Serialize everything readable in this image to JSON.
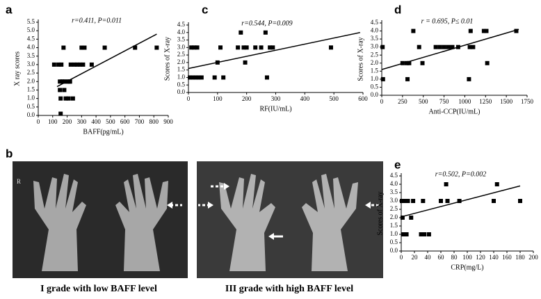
{
  "chart_data": [
    {
      "type": "scatter",
      "panel": "a",
      "annotation": "r=0.411, P=0.011",
      "x_label": "BAFF(pg/mL)",
      "y_label": "X ray scores",
      "color": "#000000",
      "x": [
        110,
        140,
        150,
        150,
        155,
        155,
        160,
        165,
        170,
        175,
        180,
        185,
        190,
        200,
        210,
        215,
        220,
        225,
        240,
        250,
        270,
        290,
        300,
        310,
        320,
        370,
        460,
        670,
        820
      ],
      "y": [
        3,
        3,
        2,
        1.5,
        1,
        0.1,
        3,
        2,
        2,
        4,
        1.5,
        2,
        1,
        2,
        1,
        2,
        2,
        3,
        1,
        3,
        3,
        3,
        4,
        3,
        4,
        3,
        4,
        4,
        4
      ],
      "trendline": {
        "x": [
          130,
          820
        ],
        "y": [
          1.7,
          4.8
        ]
      },
      "xlim": [
        0,
        900
      ],
      "ylim": [
        0,
        5.5
      ],
      "xticks": [
        0,
        100,
        200,
        300,
        400,
        500,
        600,
        700,
        800,
        900
      ],
      "yticks": [
        {
          "value": 0,
          "label": "0.0"
        },
        0.5,
        {
          "value": 1,
          "label": "1.0"
        },
        1.5,
        {
          "value": 2,
          "label": "2.0"
        },
        2.5,
        {
          "value": 3,
          "label": "3.0"
        },
        3.5,
        {
          "value": 4,
          "label": "4.0"
        },
        4.5,
        {
          "value": 5,
          "label": "5.0"
        },
        5.5
      ]
    },
    {
      "type": "scatter",
      "panel": "c",
      "annotation": "r=0.544, P=0.009",
      "x_label": "RF(IU/mL)",
      "y_label": "Scores of X-ray",
      "color": "#000000",
      "x": [
        5,
        10,
        15,
        20,
        25,
        30,
        35,
        45,
        90,
        100,
        110,
        120,
        170,
        180,
        190,
        195,
        200,
        230,
        250,
        265,
        270,
        280,
        290,
        490
      ],
      "y": [
        1,
        3,
        1,
        3,
        1,
        3,
        1,
        1,
        1,
        2,
        3,
        1,
        3,
        4,
        3,
        2,
        3,
        3,
        3,
        4,
        1,
        3,
        3,
        3
      ],
      "trendline": {
        "x": [
          0,
          590
        ],
        "y": [
          1.6,
          4.0
        ]
      },
      "xlim": [
        0,
        600
      ],
      "ylim": [
        0,
        4.5
      ],
      "xticks": [
        0,
        100,
        200,
        300,
        400,
        500,
        600
      ],
      "yticks": [
        {
          "value": 0,
          "label": "0.0"
        },
        0.5,
        {
          "value": 1,
          "label": "1.0"
        },
        1.5,
        {
          "value": 2,
          "label": "2.0"
        },
        2.5,
        {
          "value": 3,
          "label": "3.0"
        },
        3.5,
        {
          "value": 4,
          "label": "4.0"
        },
        4.5
      ]
    },
    {
      "type": "scatter",
      "panel": "d",
      "annotation": "r = 0.695, P≤ 0.01",
      "x_label": "Anti-CCP(IU/mL)",
      "y_label": "Scores of X-ray",
      "color": "#000000",
      "x": [
        10,
        15,
        250,
        300,
        310,
        330,
        380,
        450,
        490,
        650,
        700,
        750,
        800,
        850,
        920,
        1050,
        1060,
        1070,
        1100,
        1230,
        1260,
        1270,
        1620
      ],
      "y": [
        3,
        1,
        2,
        2,
        1,
        2,
        4,
        3,
        2,
        3,
        3,
        3,
        3,
        3,
        3,
        1,
        3,
        4,
        3,
        4,
        4,
        2,
        4
      ],
      "trendline": {
        "x": [
          0,
          1650
        ],
        "y": [
          1.6,
          4.1
        ]
      },
      "xlim": [
        0,
        1750
      ],
      "ylim": [
        0,
        4.5
      ],
      "xticks": [
        0,
        250,
        500,
        750,
        1000,
        1250,
        1500,
        1750
      ],
      "yticks": [
        {
          "value": 0,
          "label": "0.0"
        },
        0.5,
        {
          "value": 1,
          "label": "1.0"
        },
        1.5,
        {
          "value": 2,
          "label": "2.0"
        },
        2.5,
        {
          "value": 3,
          "label": "3.0"
        },
        3.5,
        {
          "value": 4,
          "label": "4.0"
        },
        4.5
      ]
    },
    {
      "type": "scatter",
      "panel": "e",
      "annotation": "r=0.502, P=0.002",
      "x_label": "CRP(mg/L)",
      "y_label": "Scores of X-ray",
      "color": "#000000",
      "x": [
        1,
        2,
        3,
        4,
        5,
        6,
        8,
        10,
        15,
        18,
        30,
        33,
        35,
        42,
        60,
        68,
        70,
        88,
        140,
        145,
        180
      ],
      "y": [
        3,
        2,
        1,
        3,
        1,
        3,
        1,
        3,
        2,
        3,
        1,
        3,
        1,
        1,
        3,
        4,
        3,
        3,
        3,
        4,
        3
      ],
      "trendline": {
        "x": [
          0,
          180
        ],
        "y": [
          2.05,
          3.9
        ]
      },
      "xlim": [
        0,
        200
      ],
      "ylim": [
        0,
        4.5
      ],
      "xticks": [
        0,
        20,
        40,
        60,
        80,
        100,
        120,
        140,
        160,
        180,
        200
      ],
      "yticks": [
        {
          "value": 0,
          "label": "0.0"
        },
        0.5,
        {
          "value": 1,
          "label": "1.0"
        },
        1.5,
        {
          "value": 2,
          "label": "2.0"
        },
        2.5,
        {
          "value": 3,
          "label": "3.0"
        },
        3.5,
        {
          "value": 4,
          "label": "4.0"
        },
        4.5
      ]
    }
  ],
  "panel_b": {
    "label": "b",
    "captions": [
      "I grade with low BAFF level",
      "III grade with high BAFF level"
    ]
  }
}
